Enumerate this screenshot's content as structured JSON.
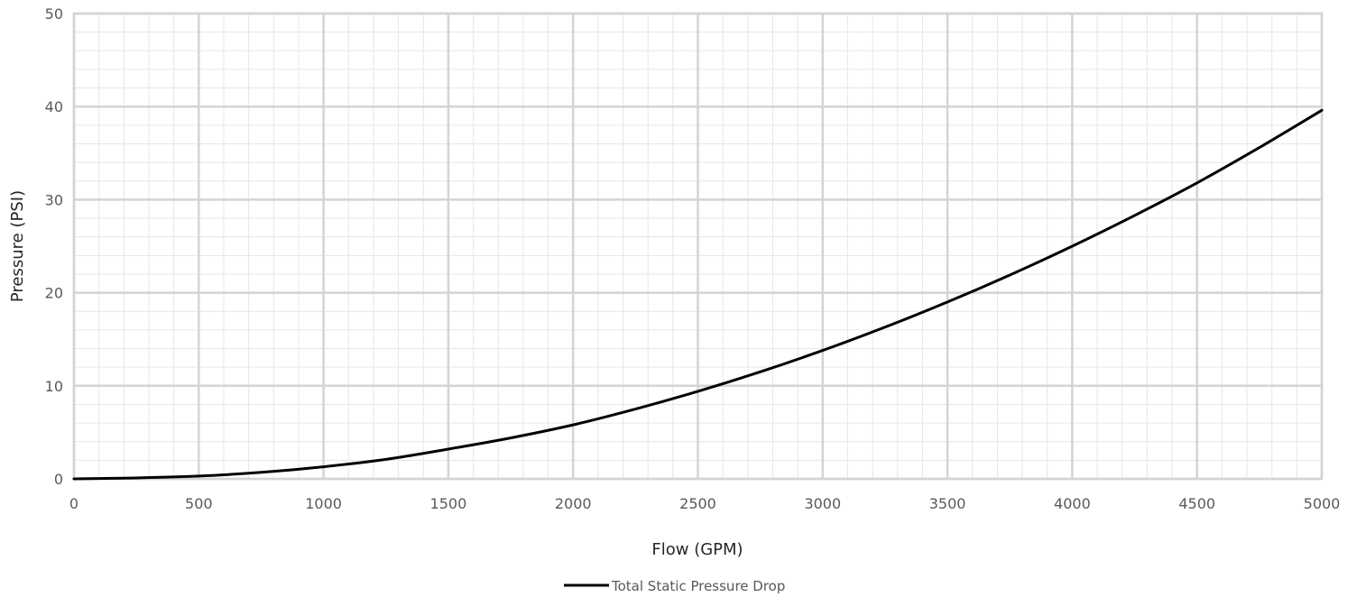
{
  "chart_data": {
    "type": "line",
    "title": "",
    "xlabel": "Flow (GPM)",
    "ylabel": "Pressure (PSI)",
    "xlim": [
      0,
      5000
    ],
    "ylim": [
      0,
      50
    ],
    "x_ticks": [
      0,
      500,
      1000,
      1500,
      2000,
      2500,
      3000,
      3500,
      4000,
      4500,
      5000
    ],
    "y_ticks": [
      0,
      10,
      20,
      30,
      40,
      50
    ],
    "grid": true,
    "legend_position": "bottom",
    "series": [
      {
        "name": "Total Static Pressure Drop",
        "color": "#000000",
        "x": [
          0,
          250,
          500,
          750,
          1000,
          1250,
          1500,
          1750,
          2000,
          2250,
          2500,
          2750,
          3000,
          3250,
          3500,
          3750,
          4000,
          4250,
          4500,
          4750,
          5000
        ],
        "y": [
          0,
          0.1,
          0.3,
          0.7,
          1.3,
          2.1,
          3.2,
          4.4,
          5.8,
          7.5,
          9.4,
          11.5,
          13.8,
          16.3,
          19.0,
          21.9,
          25.0,
          28.3,
          31.8,
          35.6,
          39.6
        ]
      }
    ]
  }
}
